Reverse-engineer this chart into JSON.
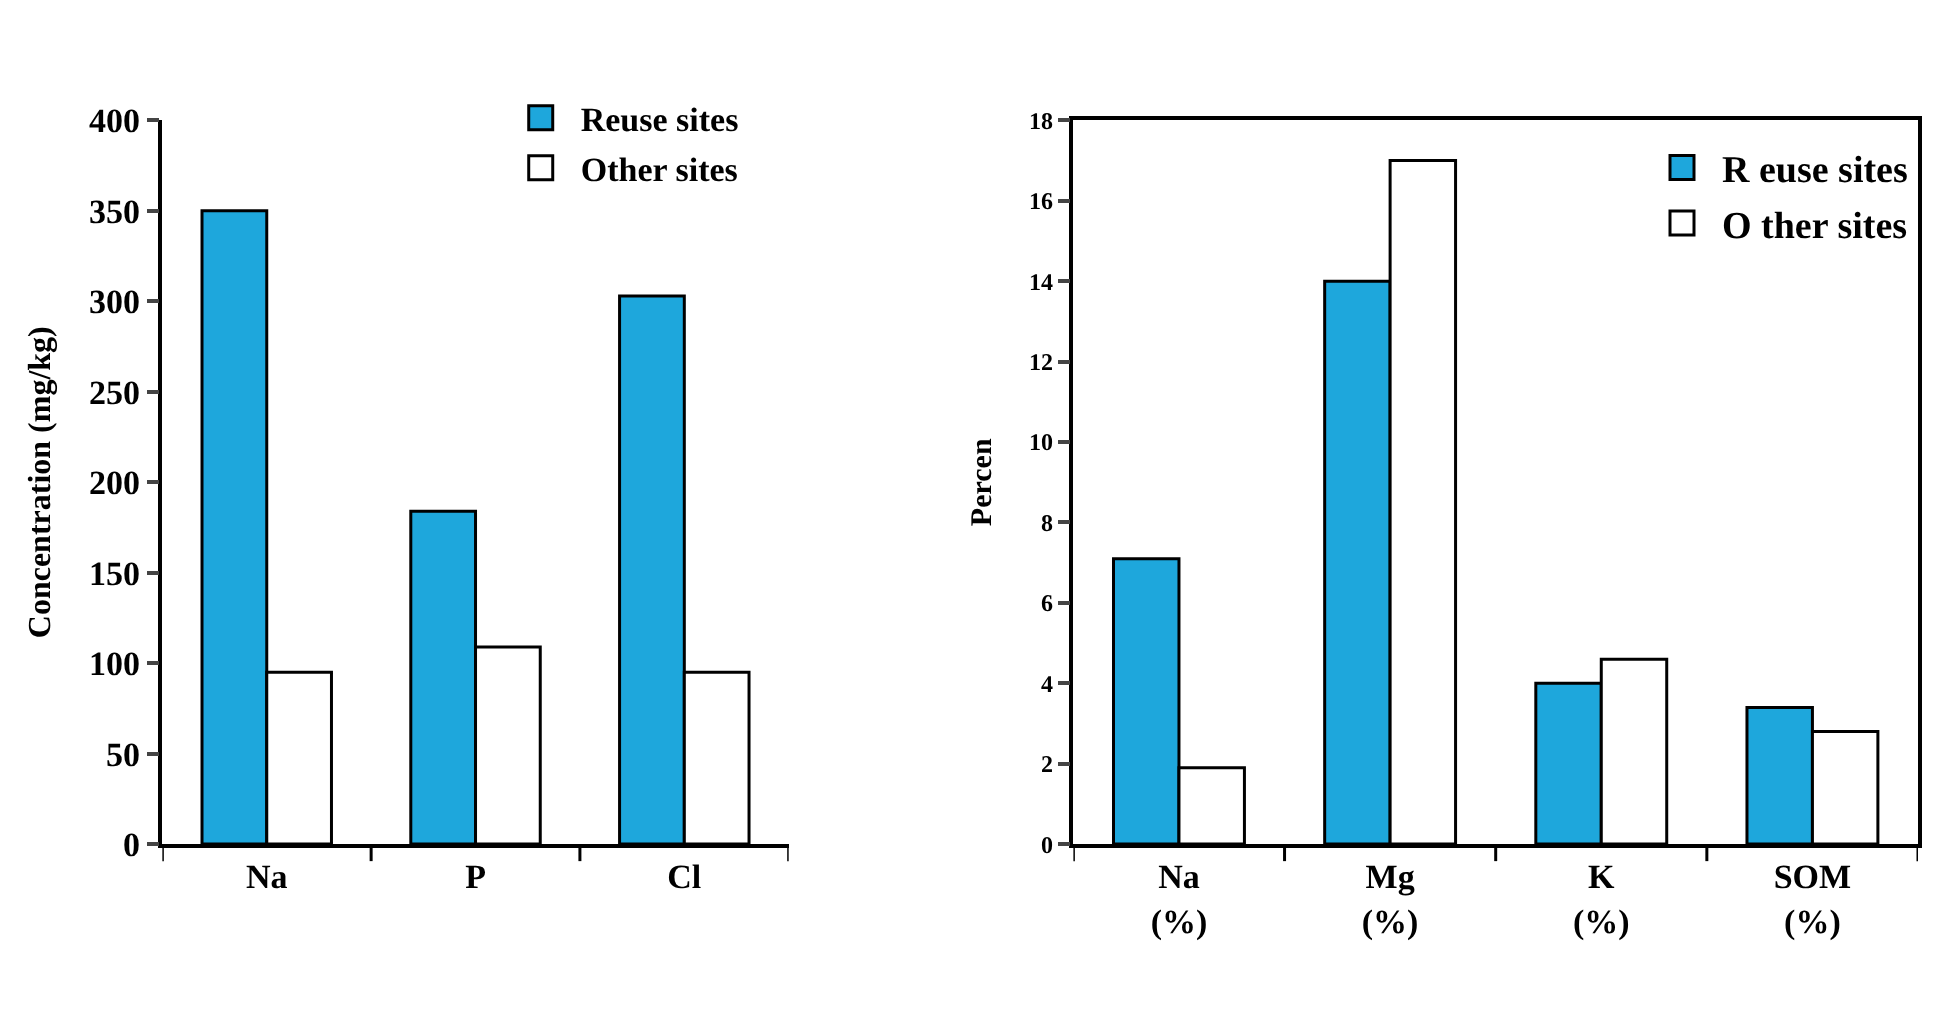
{
  "chart_data": [
    {
      "type": "bar",
      "categories": [
        "Na",
        "P",
        "Cl"
      ],
      "ylabel": "Concentration (mg/kg)",
      "ylim": [
        0,
        400
      ],
      "yticks": [
        0,
        50,
        100,
        150,
        200,
        250,
        300,
        350,
        400
      ],
      "legend": "top right",
      "series": [
        {
          "name": "Reuse sites",
          "color": "#1ea7dc",
          "values": [
            350,
            184,
            303
          ]
        },
        {
          "name": "Other sites",
          "color": "#ffffff",
          "values": [
            95,
            109,
            95
          ]
        }
      ]
    },
    {
      "type": "bar",
      "categories": [
        "Na\n(%)",
        "Mg\n(%)",
        "K\n(%)",
        "SOM\n(%)"
      ],
      "ylabel": "Percen",
      "ylim": [
        0,
        18
      ],
      "yticks": [
        0,
        2,
        4,
        6,
        8,
        10,
        12,
        14,
        16,
        18
      ],
      "legend": "top right",
      "series": [
        {
          "name": "R euse sites",
          "color": "#1ea7dc",
          "values": [
            7.1,
            14,
            4.0,
            3.4
          ]
        },
        {
          "name": "O ther sites",
          "color": "#ffffff",
          "values": [
            1.9,
            17,
            4.6,
            2.8
          ]
        }
      ]
    }
  ]
}
